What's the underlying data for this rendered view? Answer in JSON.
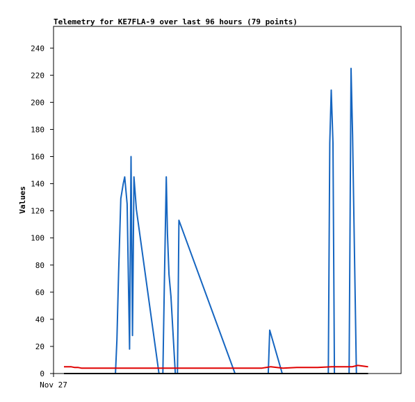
{
  "chart_data": {
    "type": "line",
    "title": "Telemetry for KE7FLA-9 over last 96 hours (79 points)",
    "xlabel": "",
    "ylabel": "Values",
    "x_tick_labels": [
      "Nov 27"
    ],
    "y_ticks": [
      0,
      20,
      40,
      60,
      80,
      100,
      120,
      140,
      160,
      180,
      200,
      220,
      240
    ],
    "xlim": [
      0,
      100
    ],
    "ylim": [
      0,
      256
    ],
    "grid": false,
    "legend": "none",
    "series": [
      {
        "color": "#1565c0",
        "points": [
          [
            8.31,
            0
          ],
          [
            17.82,
            0
          ],
          [
            18.24,
            25
          ],
          [
            18.73,
            74
          ],
          [
            19.36,
            129
          ],
          [
            20.06,
            140
          ],
          [
            20.48,
            145
          ],
          [
            21.18,
            125
          ],
          [
            21.88,
            18
          ],
          [
            22.3,
            160
          ],
          [
            22.72,
            28
          ],
          [
            23.14,
            145
          ],
          [
            23.84,
            121
          ],
          [
            30.34,
            0
          ],
          [
            31.46,
            0
          ],
          [
            31.88,
            65
          ],
          [
            32.44,
            145
          ],
          [
            32.79,
            103
          ],
          [
            33.21,
            73
          ],
          [
            33.77,
            57
          ],
          [
            35.03,
            0
          ],
          [
            35.66,
            0
          ],
          [
            36.08,
            113
          ],
          [
            52.21,
            0
          ],
          [
            61.78,
            0
          ],
          [
            62.2,
            32
          ],
          [
            65.8,
            0
          ],
          [
            79.06,
            0
          ],
          [
            79.48,
            170
          ],
          [
            79.9,
            209
          ],
          [
            80.39,
            170
          ],
          [
            80.81,
            0
          ],
          [
            85.04,
            0
          ],
          [
            85.6,
            225
          ],
          [
            86.03,
            176
          ],
          [
            87.14,
            0
          ],
          [
            89.5,
            0
          ]
        ]
      },
      {
        "color": "#e00000",
        "points": [
          [
            3.0,
            5
          ],
          [
            5.0,
            5
          ],
          [
            6.0,
            4.5
          ],
          [
            7.0,
            4.5
          ],
          [
            8.0,
            4
          ],
          [
            20.0,
            4
          ],
          [
            40.0,
            4
          ],
          [
            60.0,
            4
          ],
          [
            62.5,
            5
          ],
          [
            66.0,
            4
          ],
          [
            70.0,
            4.5
          ],
          [
            76.0,
            4.5
          ],
          [
            80.0,
            5
          ],
          [
            86.0,
            5
          ],
          [
            87.5,
            6
          ],
          [
            89.0,
            5.5
          ],
          [
            90.5,
            5
          ]
        ]
      },
      {
        "color": "#000000",
        "points": [
          [
            3.0,
            0
          ],
          [
            90.5,
            0
          ]
        ]
      }
    ]
  }
}
